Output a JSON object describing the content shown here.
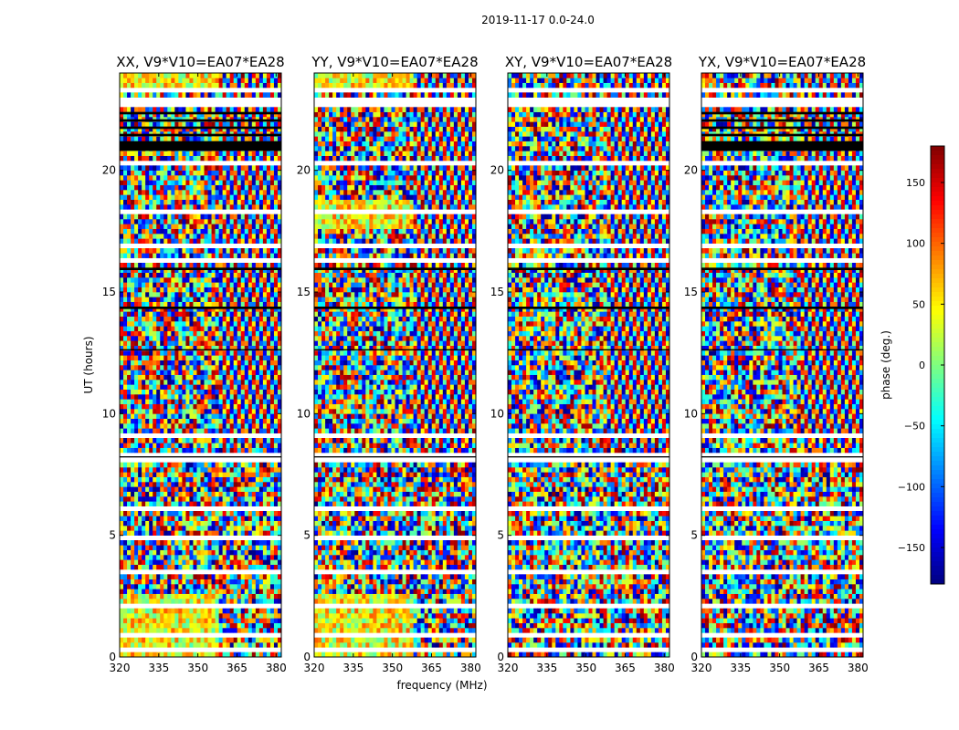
{
  "chart_data": {
    "type": "heatmap",
    "title": "2019-11-17 0.0-24.0",
    "xlabel": "frequency (MHz)",
    "ylabel": "UT (hours)",
    "xlim": [
      320,
      382
    ],
    "ylim": [
      0,
      24
    ],
    "xticks": [
      320,
      335,
      350,
      365,
      380
    ],
    "yticks": [
      0,
      5,
      10,
      15,
      20
    ],
    "panels": [
      {
        "title": "XX, V9*V10=EA07*EA28",
        "polarization": "XX"
      },
      {
        "title": "YY, V9*V10=EA07*EA28",
        "polarization": "YY"
      },
      {
        "title": "XY, V9*V10=EA07*EA28",
        "polarization": "XY"
      },
      {
        "title": "YX, V9*V10=EA07*EA28",
        "polarization": "YX"
      }
    ],
    "colorbar": {
      "label": "phase (deg.)",
      "range": [
        -180,
        180
      ],
      "ticks": [
        -150,
        -100,
        -50,
        0,
        50,
        100,
        150
      ],
      "tick_labels": [
        "−150",
        "−100",
        "−50",
        "0",
        "50",
        "100",
        "150"
      ],
      "colormap": [
        "#00007f",
        "#0000ff",
        "#007fff",
        "#00ffff",
        "#7fff7f",
        "#ffff00",
        "#ff7f00",
        "#ff0000",
        "#7f0000"
      ]
    },
    "flagged_ut_bands": [
      [
        0.3,
        0.4
      ],
      [
        0.85,
        0.95
      ],
      [
        2.05,
        2.2
      ],
      [
        2.8,
        2.85
      ],
      [
        3.5,
        3.55
      ],
      [
        4.9,
        5.0
      ],
      [
        6.1,
        6.2
      ],
      [
        7.3,
        7.35
      ],
      [
        8.05,
        8.15
      ],
      [
        8.3,
        8.4
      ],
      [
        9.0,
        9.1
      ],
      [
        12.95,
        13.05
      ],
      [
        16.1,
        16.3
      ],
      [
        16.9,
        17.0
      ],
      [
        18.2,
        18.3
      ],
      [
        20.3,
        20.45
      ],
      [
        22.6,
        22.95
      ],
      [
        23.3,
        23.35
      ]
    ],
    "black_ut_bands": [
      [
        8.2,
        8.25
      ],
      [
        12.6,
        12.65
      ],
      [
        14.3,
        14.4
      ],
      [
        15.9,
        16.0
      ],
      [
        20.8,
        21.2
      ],
      [
        21.4,
        21.5
      ],
      [
        21.7,
        21.8
      ],
      [
        22.0,
        22.1
      ],
      [
        22.3,
        22.4
      ]
    ]
  }
}
